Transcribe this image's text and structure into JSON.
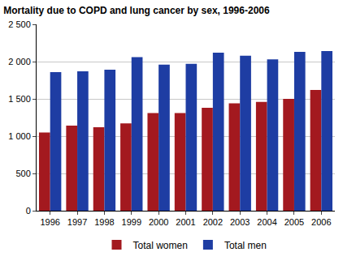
{
  "chart_data": {
    "type": "bar",
    "title": "Mortality due to COPD and lung cancer by sex, 1996-2006",
    "categories": [
      "1996",
      "1997",
      "1998",
      "1999",
      "2000",
      "2001",
      "2002",
      "2003",
      "2004",
      "2005",
      "2006"
    ],
    "series": [
      {
        "name": "Total women",
        "color": "#a3191f",
        "values": [
          1050,
          1140,
          1120,
          1170,
          1310,
          1310,
          1380,
          1440,
          1460,
          1500,
          1620
        ]
      },
      {
        "name": "Total men",
        "color": "#1e3da3",
        "values": [
          1860,
          1870,
          1890,
          2060,
          1960,
          1970,
          2120,
          2080,
          2030,
          2130,
          2140
        ]
      }
    ],
    "ylim": [
      0,
      2500
    ],
    "yticks": [
      0,
      500,
      {
        "value": 1000,
        "label": "1 000"
      },
      {
        "value": 1500,
        "label": "1 500"
      },
      {
        "value": 2000,
        "label": "2 000"
      },
      {
        "value": 2500,
        "label": "2 500"
      }
    ],
    "grid": true,
    "legend": "bottom"
  }
}
